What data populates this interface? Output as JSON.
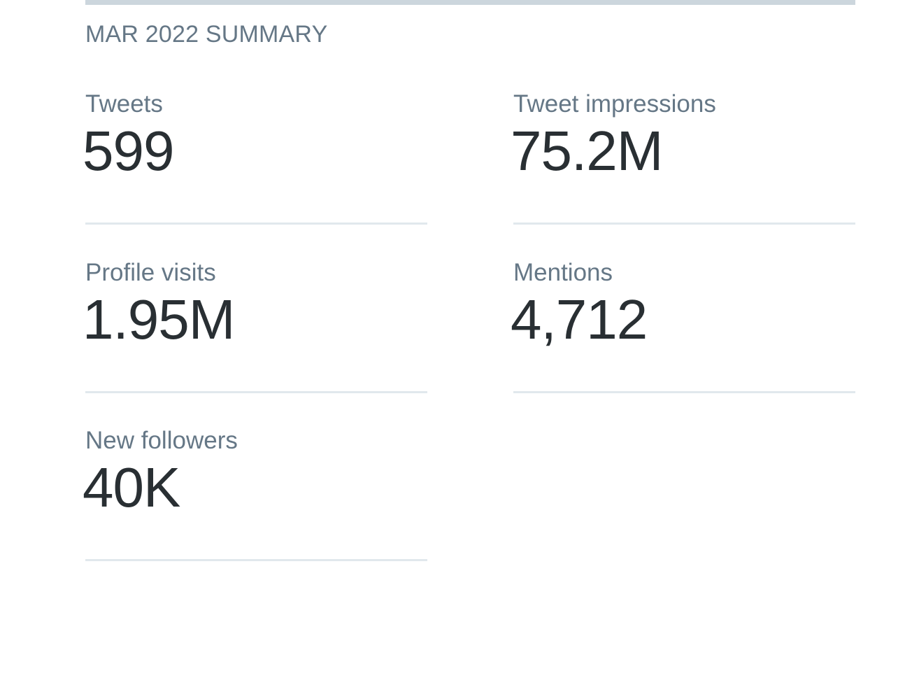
{
  "summary": {
    "title": "MAR 2022 SUMMARY",
    "stats": [
      {
        "label": "Tweets",
        "value": "599"
      },
      {
        "label": "Tweet impressions",
        "value": "75.2M"
      },
      {
        "label": "Profile visits",
        "value": "1.95M"
      },
      {
        "label": "Mentions",
        "value": "4,712"
      },
      {
        "label": "New followers",
        "value": "40K"
      }
    ]
  },
  "colors": {
    "label": "#657786",
    "value": "#292f33",
    "divider": "#e1e8ed",
    "top_bar": "#ccd6dd"
  }
}
